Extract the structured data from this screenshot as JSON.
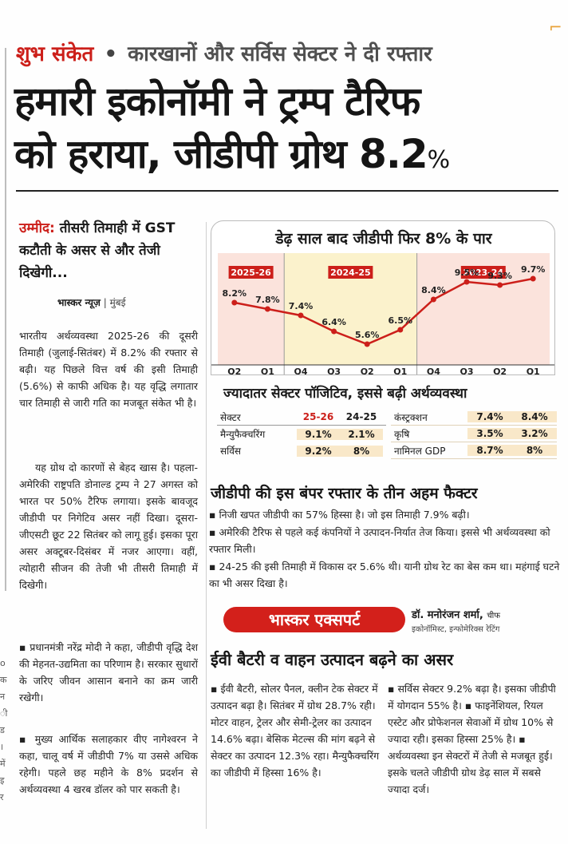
{
  "kicker": {
    "label": "शुभ संकेत",
    "sep": "•",
    "text": "कारखानों और सर्विस सेक्टर ने दी रफ्तार"
  },
  "headline": {
    "line1": "हमारी इकोनॉमी ने ट्रम्प टैरिफ",
    "line2": "को हराया, जीडीपी ग्रोथ 8.2",
    "pct": "%"
  },
  "deck": {
    "label": "उम्मीद:",
    "text": "तीसरी तिमाही में GST कटौती के असर से और तेजी दिखेगी..."
  },
  "byline": {
    "agency": "भास्कर न्यूज़",
    "sep": "|",
    "city": "मुंबई"
  },
  "body": [
    "भारतीय अर्थव्यवस्था 2025-26 की दूसरी तिमाही (जुलाई-सितंबर) में 8.2% की रफ्तार से बढ़ी। यह पिछले वित्त वर्ष की इसी तिमाही (5.6%) से काफी अधिक है। यह वृद्धि लगातार चार तिमाही से जारी गति का मजबूत संकेत भी है।",
    "यह ग्रोथ दो कारणों से बेहद खास है। पहला- अमेरिकी राष्ट्रपति डोनाल्ड ट्रम्प ने 27 अगस्त को भारत पर 50% टैरिफ लगाया। इसके बावजूद जीडीपी पर निगेटिव असर नहीं दिखा। दूसरा- जीएसटी छूट 22 सितंबर को लागू हुई। इसका पूरा असर अक्टूबर-दिसंबर में नजर आएगा। वहीं, त्योहारी सीजन की तेजी भी तीसरी तिमाही में दिखेगी।",
    "▪ प्रधानमंत्री नरेंद्र मोदी ने कहा, जीडीपी वृद्धि देश की मेहनत-उद्यमिता का परिणाम है। सरकार सुधारों के जरिए जीवन आसान बनाने का क्रम जारी रखेगी।",
    "▪ मुख्य आर्थिक सलाहकार वीए नागेश्वरन ने कहा, चालू वर्ष में जीडीपी 7% या उससे अधिक रहेगी। पहले छह महीने के 8% प्रदर्शन से अर्थव्यवस्था 4 खरब डॉलर को पार सकती है।"
  ],
  "left_strip": [
    "o",
    "क",
    "न",
    "ी",
    "ड",
    "।",
    "में",
    "इ",
    "र"
  ],
  "chart": {
    "title": "डेढ़ साल बाद जीडीपी फिर 8% के पार",
    "colors": {
      "line": "#cc1f1a",
      "band_pink": "#fbe3dc",
      "band_yellow": "#fbf2cc",
      "year_tag": "#cc1f1a"
    }
  },
  "chart_data": {
    "type": "line",
    "title": "डेढ़ साल बाद जीडीपी फिर 8% के पार",
    "groups": [
      "2025-26",
      "2024-25",
      "2023-24"
    ],
    "categories": [
      "Q2",
      "Q1",
      "Q4",
      "Q3",
      "Q2",
      "Q1",
      "Q4",
      "Q3",
      "Q2",
      "Q1"
    ],
    "values": [
      8.2,
      7.8,
      7.4,
      6.4,
      5.6,
      6.5,
      8.4,
      9.5,
      9.3,
      9.7
    ],
    "value_labels": [
      "8.2%",
      "7.8%",
      "7.4%",
      "6.4%",
      "5.6%",
      "6.5%",
      "8.4%",
      "9.5%",
      "9.3%",
      "9.7%"
    ],
    "ylim": [
      5,
      10.2
    ],
    "grid": false
  },
  "table": {
    "title": "ज्यादातर सेक्टर पॉजिटिव, इससे बढ़ी अर्थव्यवस्था",
    "headers": [
      "सेक्टर",
      "25-26",
      "24-25"
    ],
    "left_rows": [
      [
        "मैन्युफैक्चरिंग",
        "9.1%",
        "2.1%"
      ],
      [
        "सर्विस",
        "9.2%",
        "8%"
      ]
    ],
    "right_rows": [
      [
        "कंस्ट्रक्शन",
        "7.4%",
        "8.4%"
      ],
      [
        "कृषि",
        "3.5%",
        "3.2%"
      ],
      [
        "नामिनल GDP",
        "8.7%",
        "8%"
      ]
    ]
  },
  "factors": {
    "title": "जीडीपी की इस बंपर रफ्तार के तीन अहम फैक्टर",
    "items": [
      "▪ निजी खपत जीडीपी का 57% हिस्सा है। जो इस तिमाही 7.9% बढ़ी।",
      "▪ अमेरिकी टैरिफ से पहले कई कंपनियों ने उत्पादन-निर्यात तेज किया। इससे भी अर्थव्यवस्था को रफ्तार मिली।",
      "▪ 24-25 की इसी तिमाही में विकास दर 5.6% थी। यानी ग्रोथ रेट का बेस कम था। महंगाई घटने का भी असर दिखा है।"
    ]
  },
  "expert": {
    "badge": "भास्कर एक्सपर्ट",
    "name": "डॉ. मनोरंजन शर्मा,",
    "name_suffix": "चीफ",
    "role": "इकोनॉमिस्ट, इन्फोमेरिक्स रेटिंग",
    "title": "ईवी बैटरी व वाहन उत्पादन बढ़ने का असर",
    "col1": "▪ ईवी बैटरी, सोलर पैनल, क्लीन टेक सेक्टर में उत्पादन बढ़ा है। सितंबर में ग्रोथ 28.7% रही। मोटर वाहन, ट्रेलर और सेमी-ट्रेलर का उत्पादन 14.6% बढ़ा। बेसिक मेटल्स की मांग बढ़ने से सेक्टर का उत्पादन 12.3% रहा। मैन्युफैक्चरिंग का जीडीपी में हिस्सा 16% है।",
    "col2": "▪ सर्विस सेक्टर 9.2% बढ़ा है। इसका जीडीपी में योगदान 55% है। ▪ फाइनेंशियल, रियल एस्टेट और प्रोफेशनल सेवाओं में ग्रोथ 10% से ज्यादा रही। इसका हिस्सा 25% है। ▪ अर्थव्यवस्था इन सेक्टरों में तेजी से मजबूत हुई। इसके चलते जीडीपी ग्रोथ डेढ़ साल में सबसे ज्यादा दर्ज।"
  }
}
